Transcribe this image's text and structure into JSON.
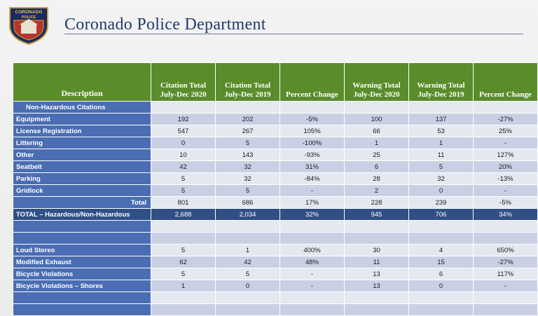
{
  "header": {
    "badge_top": "CORONADO",
    "badge_bottom": "POLICE",
    "title": "Coronado Police Department"
  },
  "table": {
    "columns": [
      "Description",
      "Citation Total July-Dec 2020",
      "Citation Total July-Dec 2019",
      "Percent Change",
      "Warning Total July-Dec 2020",
      "Warning Total July-Dec 2019",
      "Percent Change"
    ],
    "section_label": "Non-Hazardous Citations",
    "rows": [
      {
        "label": "Equipment",
        "values": [
          "192",
          "202",
          "-5%",
          "100",
          "137",
          "-27%"
        ]
      },
      {
        "label": "License Registration",
        "values": [
          "547",
          "267",
          "105%",
          "66",
          "53",
          "25%"
        ]
      },
      {
        "label": "Littering",
        "values": [
          "0",
          "5",
          "-100%",
          "1",
          "1",
          "-"
        ]
      },
      {
        "label": "Other",
        "values": [
          "10",
          "143",
          "-93%",
          "25",
          "11",
          "127%"
        ]
      },
      {
        "label": "Seatbelt",
        "values": [
          "42",
          "32",
          "31%",
          "6",
          "5",
          "20%"
        ]
      },
      {
        "label": "Parking",
        "values": [
          "5",
          "32",
          "-84%",
          "28",
          "32",
          "-13%"
        ]
      },
      {
        "label": "Gridlock",
        "values": [
          "5",
          "5",
          "-",
          "2",
          "0",
          "-"
        ]
      }
    ],
    "total": {
      "label": "Total",
      "values": [
        "801",
        "686",
        "17%",
        "228",
        "239",
        "-5%"
      ]
    },
    "grand_total": {
      "label": "TOTAL – Hazardous/Non-Hazardous",
      "values": [
        "2,688",
        "2,034",
        "32%",
        "945",
        "706",
        "34%"
      ]
    },
    "rows2": [
      {
        "label": "Loud Stereo",
        "values": [
          "5",
          "1",
          "400%",
          "30",
          "4",
          "650%"
        ]
      },
      {
        "label": "Modified Exhaust",
        "values": [
          "62",
          "42",
          "48%",
          "11",
          "15",
          "-27%"
        ]
      },
      {
        "label": "Bicycle Violations",
        "values": [
          "5",
          "5",
          "-",
          "13",
          "6",
          "117%"
        ]
      },
      {
        "label": "Bicycle Violations – Shores",
        "values": [
          "1",
          "0",
          "-",
          "13",
          "0",
          "-"
        ]
      }
    ]
  },
  "colors": {
    "header_green": "#5a8c2b",
    "label_blue": "#4a6db3",
    "total_navy": "#2f4f86",
    "title_navy": "#1f3a6b"
  }
}
